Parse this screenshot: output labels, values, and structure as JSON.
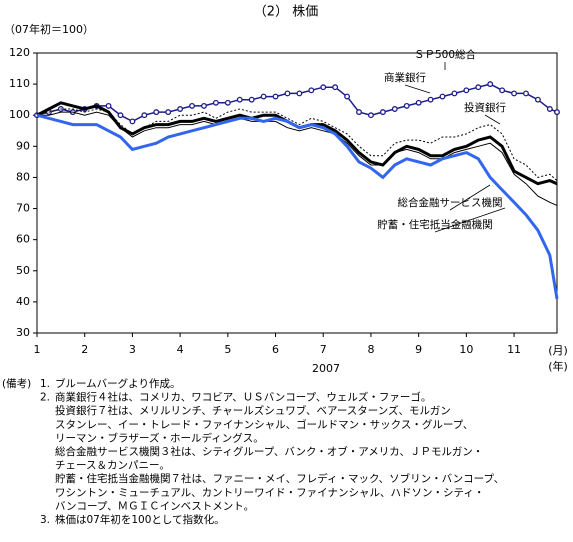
{
  "chart_data": {
    "type": "line",
    "title": "（2） 株価",
    "y_label": "（07年初＝100）",
    "x_label": "2007",
    "x_unit_labels": [
      "(月)",
      "(年)"
    ],
    "x": [
      1,
      1.25,
      1.5,
      1.75,
      2,
      2.25,
      2.5,
      2.75,
      3,
      3.25,
      3.5,
      3.75,
      4,
      4.25,
      4.5,
      4.75,
      5,
      5.25,
      5.5,
      5.75,
      6,
      6.25,
      6.5,
      6.75,
      7,
      7.25,
      7.5,
      7.75,
      8,
      8.25,
      8.5,
      8.75,
      9,
      9.25,
      9.5,
      9.75,
      10,
      10.25,
      10.5,
      10.75,
      11,
      11.25,
      11.5,
      11.75,
      11.9
    ],
    "xlim": [
      1,
      11.9
    ],
    "xticks": [
      1,
      2,
      3,
      4,
      5,
      6,
      7,
      8,
      9,
      10,
      11
    ],
    "ylim": [
      30,
      120
    ],
    "yticks": [
      30,
      40,
      50,
      60,
      70,
      80,
      90,
      100,
      110,
      120
    ],
    "series": [
      {
        "name": "ＳＰ500総合",
        "color": "#1c1c8a",
        "markers": true,
        "values": [
          100,
          101,
          102,
          101,
          102,
          103,
          103,
          100,
          98,
          100,
          101,
          101,
          102,
          103,
          103,
          104,
          104,
          105,
          105,
          106,
          106,
          107,
          107,
          108,
          109,
          109,
          106,
          101,
          100,
          101,
          102,
          103,
          104,
          105,
          106,
          107,
          108,
          109,
          110,
          108,
          107,
          107,
          105,
          102,
          101
        ]
      },
      {
        "name": "商業銀行",
        "color": "#000000",
        "values": [
          100,
          102,
          104,
          103,
          102,
          103,
          101,
          96,
          94,
          96,
          97,
          97,
          98,
          98,
          99,
          98,
          99,
          100,
          99,
          100,
          100,
          98,
          96,
          97,
          97,
          95,
          92,
          88,
          85,
          84,
          88,
          90,
          89,
          87,
          87,
          89,
          90,
          92,
          93,
          90,
          82,
          80,
          78,
          79,
          78
        ]
      },
      {
        "name": "投資銀行",
        "color": "#000000",
        "dashed": true,
        "values": [
          100,
          101,
          102,
          102,
          101,
          102,
          101,
          97,
          94,
          96,
          98,
          98,
          100,
          100,
          101,
          99,
          101,
          102,
          101,
          101,
          101,
          99,
          97,
          99,
          98,
          96,
          94,
          90,
          87,
          87,
          91,
          92,
          92,
          91,
          93,
          93,
          94,
          96,
          97,
          94,
          86,
          84,
          80,
          81,
          79
        ]
      },
      {
        "name": "総合金融サービス機関",
        "color": "#000000",
        "values": [
          100,
          100,
          101,
          101,
          100,
          101,
          100,
          96,
          93,
          95,
          96,
          96,
          97,
          97,
          98,
          97,
          98,
          99,
          98,
          98,
          98,
          96,
          95,
          96,
          95,
          94,
          91,
          87,
          84,
          84,
          88,
          89,
          88,
          86,
          86,
          88,
          89,
          90,
          91,
          88,
          81,
          78,
          74,
          72,
          71
        ]
      },
      {
        "name": "貯蓄・住宅抵当金融機関",
        "color": "#3366ee",
        "values": [
          100,
          99,
          98,
          97,
          97,
          97,
          95,
          93,
          89,
          90,
          91,
          93,
          94,
          95,
          96,
          97,
          98,
          99,
          99,
          98,
          99,
          98,
          96,
          97,
          96,
          94,
          90,
          85,
          83,
          80,
          84,
          86,
          85,
          84,
          86,
          87,
          88,
          86,
          80,
          76,
          72,
          68,
          63,
          55,
          41
        ]
      }
    ],
    "notes": {
      "label": "(備考)",
      "items": [
        {
          "number": "1.",
          "lines": [
            "ブルームバーグより作成。"
          ]
        },
        {
          "number": "2.",
          "lines": [
            "商業銀行４社は、コメリカ、ワコビア、ＵＳバンコープ、ウェルズ・ファーゴ。",
            "投資銀行７社は、メリルリンチ、チャールズシュワブ、ベアースターンズ、モルガン",
            "スタンレー、イー・トレード・ファイナンシャル、ゴールドマン・サックス・グループ、",
            "リーマン・ブラザーズ・ホールディングス。",
            "総合金融サービス機関３社は、シティグループ、バンク・オブ・アメリカ、ＪＰモルガン・",
            "チェース＆カンパニー。",
            "貯蓄・住宅抵当金融機関７社は、ファニー・メイ、フレディ・マック、ソブリン・バンコープ、",
            "ワシントン・ミューチュアル、カントリーワイド・ファイナンシャル、ハドソン・シティ・",
            "バンコープ、ＭＧＩＣインベストメント。"
          ]
        },
        {
          "number": "3.",
          "lines": [
            "株価は07年初を100として指数化。"
          ]
        }
      ]
    }
  }
}
